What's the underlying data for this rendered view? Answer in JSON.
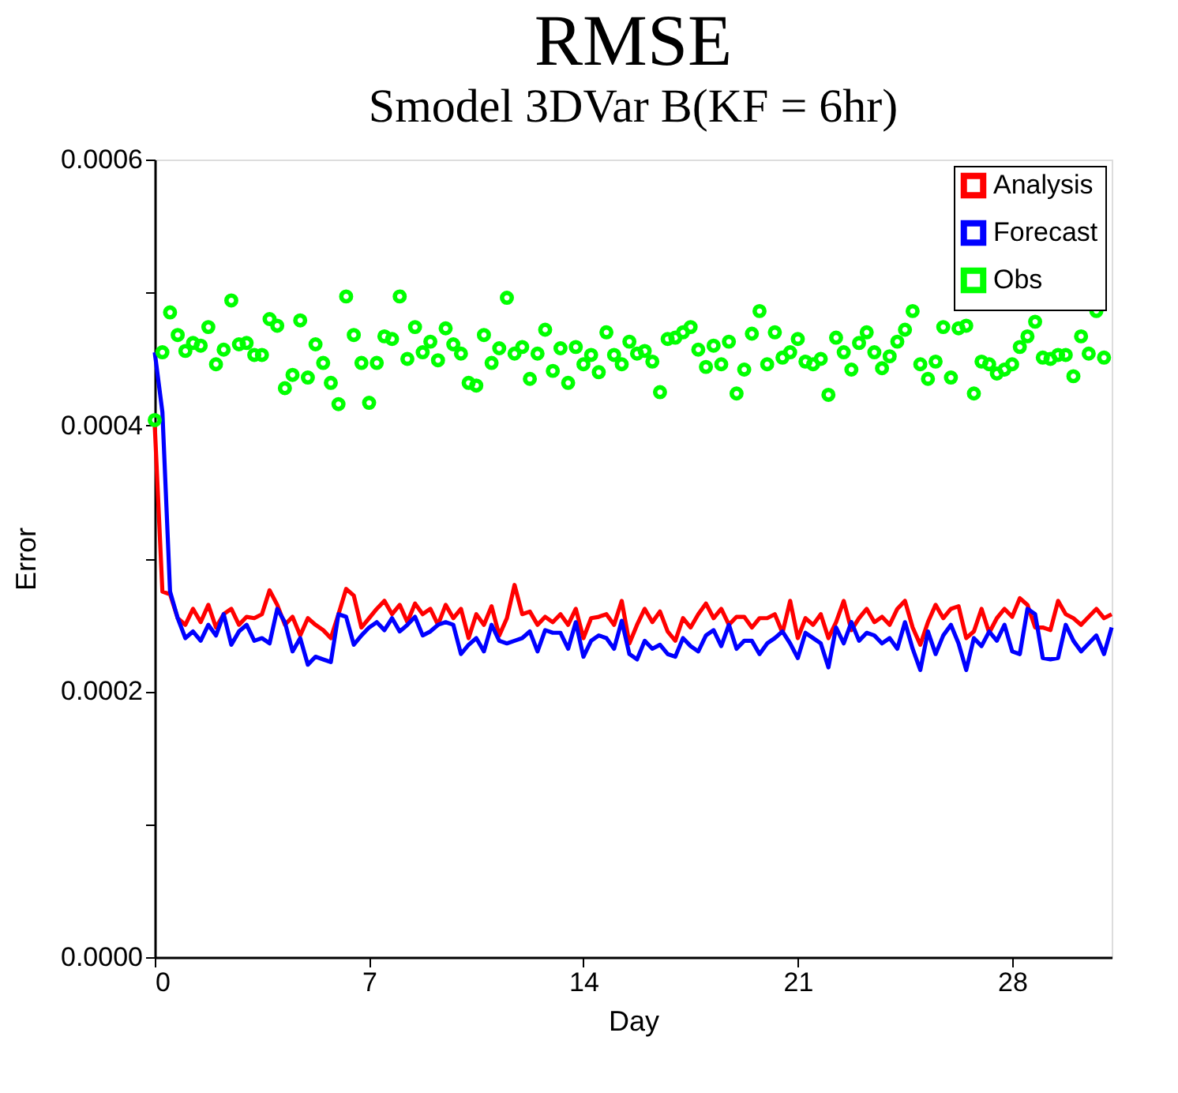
{
  "chart_data": {
    "type": "line",
    "title": "RMSE",
    "subtitle": "Smodel 3DVar B(KF = 6hr)",
    "xlabel": "Day",
    "ylabel": "Error",
    "xlim": [
      0,
      31.25
    ],
    "xticks": [
      0,
      7,
      14,
      21,
      28
    ],
    "ylim": [
      0,
      0.0006
    ],
    "yticks": [
      {
        "value": 0,
        "label": "0.0000"
      },
      {
        "value": 0.0001,
        "label": null
      },
      {
        "value": 0.0002,
        "label": "0.0002"
      },
      {
        "value": 0.0003,
        "label": null
      },
      {
        "value": 0.0004,
        "label": "0.0004"
      },
      {
        "value": 0.0005,
        "label": null
      },
      {
        "value": 0.0006,
        "label": "0.0006"
      }
    ],
    "grid": false,
    "legend": "top right",
    "line_style": "solid",
    "x": [
      0,
      0.25,
      0.5,
      0.75,
      1,
      1.25,
      1.5,
      1.75,
      2,
      2.25,
      2.5,
      2.75,
      3,
      3.25,
      3.5,
      3.75,
      4,
      4.25,
      4.5,
      4.75,
      5,
      5.25,
      5.5,
      5.75,
      6,
      6.25,
      6.5,
      6.75,
      7,
      7.25,
      7.5,
      7.75,
      8,
      8.25,
      8.5,
      8.75,
      9,
      9.25,
      9.5,
      9.75,
      10,
      10.25,
      10.5,
      10.75,
      11,
      11.25,
      11.5,
      11.75,
      12,
      12.25,
      12.5,
      12.75,
      13,
      13.25,
      13.5,
      13.75,
      14,
      14.25,
      14.5,
      14.75,
      15,
      15.25,
      15.5,
      15.75,
      16,
      16.25,
      16.5,
      16.75,
      17,
      17.25,
      17.5,
      17.75,
      18,
      18.25,
      18.5,
      18.75,
      19,
      19.25,
      19.5,
      19.75,
      20,
      20.25,
      20.5,
      20.75,
      21,
      21.25,
      21.5,
      21.75,
      22,
      22.25,
      22.5,
      22.75,
      23,
      23.25,
      23.5,
      23.75,
      24,
      24.25,
      24.5,
      24.75,
      25,
      25.25,
      25.5,
      25.75,
      26,
      26.25,
      26.5,
      26.75,
      27,
      27.25,
      27.5,
      27.75,
      28,
      28.25,
      28.5,
      28.75,
      29,
      29.25,
      29.5,
      29.75,
      30,
      30.25,
      30.5,
      30.75,
      31,
      31.25
    ],
    "series": [
      {
        "name": "Analysis",
        "color": "#ff0000",
        "marker": "none",
        "values": [
          0.0004,
          0.000275,
          0.000273,
          0.000255,
          0.00025,
          0.000262,
          0.000252,
          0.000265,
          0.000248,
          0.000258,
          0.000262,
          0.00025,
          0.000256,
          0.000255,
          0.000258,
          0.000276,
          0.000265,
          0.00025,
          0.000256,
          0.000242,
          0.000255,
          0.00025,
          0.000246,
          0.00024,
          0.000258,
          0.000277,
          0.000272,
          0.000248,
          0.000255,
          0.000262,
          0.000268,
          0.000258,
          0.000265,
          0.000252,
          0.000266,
          0.000258,
          0.000262,
          0.00025,
          0.000265,
          0.000255,
          0.000262,
          0.00024,
          0.000258,
          0.00025,
          0.000264,
          0.000242,
          0.000255,
          0.00028,
          0.000258,
          0.00026,
          0.00025,
          0.000256,
          0.000252,
          0.000258,
          0.00025,
          0.000262,
          0.00024,
          0.000255,
          0.000256,
          0.000258,
          0.00025,
          0.000268,
          0.000236,
          0.00025,
          0.000262,
          0.000252,
          0.00026,
          0.000245,
          0.000238,
          0.000255,
          0.000248,
          0.000258,
          0.000266,
          0.000255,
          0.000262,
          0.00025,
          0.000256,
          0.000256,
          0.000248,
          0.000255,
          0.000255,
          0.000258,
          0.000244,
          0.000268,
          0.00024,
          0.000255,
          0.00025,
          0.000258,
          0.00024,
          0.000252,
          0.000268,
          0.000246,
          0.000255,
          0.000262,
          0.000252,
          0.000256,
          0.00025,
          0.000262,
          0.000268,
          0.000248,
          0.000235,
          0.000252,
          0.000265,
          0.000255,
          0.000262,
          0.000264,
          0.00024,
          0.000245,
          0.000262,
          0.000244,
          0.000255,
          0.000262,
          0.000256,
          0.00027,
          0.000265,
          0.000248,
          0.000248,
          0.000246,
          0.000268,
          0.000258,
          0.000255,
          0.00025,
          0.000256,
          0.000262,
          0.000255,
          0.000258
        ]
      },
      {
        "name": "Forecast",
        "color": "#0000ff",
        "marker": "none",
        "values": [
          0.000455,
          0.00041,
          0.000275,
          0.000255,
          0.00024,
          0.000245,
          0.000238,
          0.00025,
          0.000242,
          0.000258,
          0.000235,
          0.000245,
          0.00025,
          0.000238,
          0.00024,
          0.000236,
          0.000262,
          0.000252,
          0.00023,
          0.00024,
          0.00022,
          0.000226,
          0.000224,
          0.000222,
          0.000258,
          0.000256,
          0.000235,
          0.000242,
          0.000248,
          0.000252,
          0.000246,
          0.000255,
          0.000245,
          0.00025,
          0.000256,
          0.000242,
          0.000245,
          0.00025,
          0.000252,
          0.00025,
          0.000228,
          0.000235,
          0.00024,
          0.00023,
          0.00025,
          0.000238,
          0.000236,
          0.000238,
          0.00024,
          0.000245,
          0.00023,
          0.000246,
          0.000244,
          0.000244,
          0.000232,
          0.000252,
          0.000226,
          0.000238,
          0.000242,
          0.00024,
          0.000232,
          0.000253,
          0.000228,
          0.000224,
          0.000238,
          0.000232,
          0.000235,
          0.000228,
          0.000226,
          0.00024,
          0.000234,
          0.00023,
          0.000242,
          0.000246,
          0.000234,
          0.00025,
          0.000232,
          0.000238,
          0.000238,
          0.000228,
          0.000236,
          0.00024,
          0.000245,
          0.000236,
          0.000225,
          0.000244,
          0.00024,
          0.000236,
          0.000218,
          0.000248,
          0.000236,
          0.000252,
          0.000238,
          0.000244,
          0.000242,
          0.000236,
          0.00024,
          0.000232,
          0.000252,
          0.000232,
          0.000216,
          0.000245,
          0.000228,
          0.000242,
          0.00025,
          0.000236,
          0.000216,
          0.00024,
          0.000234,
          0.000245,
          0.000238,
          0.00025,
          0.00023,
          0.000228,
          0.000262,
          0.000258,
          0.000225,
          0.000224,
          0.000225,
          0.00025,
          0.000238,
          0.00023,
          0.000236,
          0.000242,
          0.000228,
          0.000248
        ]
      },
      {
        "name": "Obs",
        "color": "#00ff00",
        "type": "scatter",
        "marker": "circle",
        "x": [
          0,
          0.25,
          0.5,
          0.75,
          1,
          1.25,
          1.5,
          1.75,
          2,
          2.25,
          2.5,
          2.75,
          3,
          3.25,
          3.5,
          3.75,
          4,
          4.25,
          4.5,
          4.75,
          5,
          5.25,
          5.5,
          5.75,
          6,
          6.25,
          6.5,
          6.75,
          7,
          7.25,
          7.5,
          7.75,
          8,
          8.25,
          8.5,
          8.75,
          9,
          9.25,
          9.5,
          9.75,
          10,
          10.25,
          10.5,
          10.75,
          11,
          11.25,
          11.5,
          11.75,
          12,
          12.25,
          12.5,
          12.75,
          13,
          13.25,
          13.5,
          13.75,
          14,
          14.25,
          14.5,
          14.75,
          15,
          15.25,
          15.5,
          15.75,
          16,
          16.25,
          16.5,
          16.75,
          17,
          17.25,
          17.5,
          17.75,
          18,
          18.25,
          18.5,
          18.75,
          19,
          19.25,
          19.5,
          19.75,
          20,
          20.25,
          20.5,
          20.75,
          21,
          21.25,
          21.5,
          21.75,
          22,
          22.25,
          22.5,
          22.75,
          23,
          23.25,
          23.5,
          23.75,
          24,
          24.25,
          24.5,
          24.75,
          25,
          25.25,
          25.5,
          25.75,
          26,
          26.25,
          26.5,
          26.75,
          27,
          27.25,
          27.5,
          27.75,
          28,
          28.25,
          28.5,
          28.75,
          29,
          29.25,
          29.5,
          29.75,
          30,
          30.25,
          30.5,
          30.75,
          31
        ],
        "values": [
          0.000404,
          0.000455,
          0.000485,
          0.000468,
          0.000456,
          0.000462,
          0.00046,
          0.000474,
          0.000446,
          0.000457,
          0.000494,
          0.000461,
          0.000462,
          0.000453,
          0.000453,
          0.00048,
          0.000475,
          0.000428,
          0.000438,
          0.000479,
          0.000436,
          0.000461,
          0.000447,
          0.000432,
          0.000416,
          0.000497,
          0.000468,
          0.000447,
          0.000417,
          0.000447,
          0.000467,
          0.000465,
          0.000497,
          0.00045,
          0.000474,
          0.000455,
          0.000463,
          0.000449,
          0.000473,
          0.000461,
          0.000454,
          0.000432,
          0.00043,
          0.000468,
          0.000447,
          0.000458,
          0.000496,
          0.000454,
          0.000459,
          0.000435,
          0.000454,
          0.000472,
          0.000441,
          0.000458,
          0.000432,
          0.000459,
          0.000446,
          0.000453,
          0.00044,
          0.00047,
          0.000453,
          0.000446,
          0.000463,
          0.000454,
          0.000456,
          0.000448,
          0.000425,
          0.000465,
          0.000466,
          0.00047,
          0.000474,
          0.000457,
          0.000444,
          0.00046,
          0.000446,
          0.000463,
          0.000424,
          0.000442,
          0.000469,
          0.000486,
          0.000446,
          0.00047,
          0.000451,
          0.000455,
          0.000465,
          0.000448,
          0.000446,
          0.00045,
          0.000423,
          0.000466,
          0.000455,
          0.000442,
          0.000462,
          0.00047,
          0.000455,
          0.000443,
          0.000452,
          0.000463,
          0.000472,
          0.000486,
          0.000446,
          0.000435,
          0.000448,
          0.000474,
          0.000436,
          0.000473,
          0.000475,
          0.000424,
          0.000448,
          0.000446,
          0.000439,
          0.000442,
          0.000446,
          0.000459,
          0.000467,
          0.000478,
          0.000451,
          0.00045,
          0.000453,
          0.000453,
          0.000437,
          0.000467,
          0.000454,
          0.000486,
          0.000451
        ]
      }
    ]
  }
}
